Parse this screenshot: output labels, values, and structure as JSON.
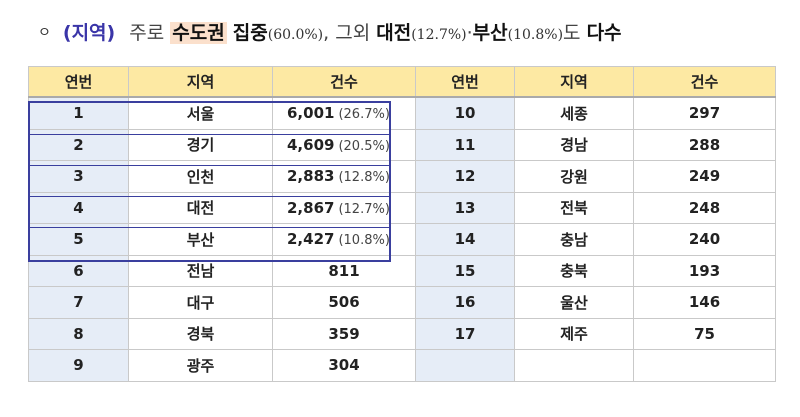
{
  "heading": {
    "bullet": "ㅇ",
    "tag": "(지역)",
    "t1": "주로",
    "t2": "수도권",
    "t3": "집중",
    "t4": "(60.0%)",
    "t5": ", 그외",
    "t6": "대전",
    "t7": "(12.7%)",
    "t8": "·",
    "t9": "부산",
    "t10": "(10.8%)",
    "t11": "도",
    "t12": "다수"
  },
  "table": {
    "headers": [
      "연번",
      "지역",
      "건수",
      "연번",
      "지역",
      "건수"
    ],
    "rows": [
      {
        "no": "1",
        "region": "서울",
        "count": "6,001",
        "pct": "(26.7%)",
        "no2": "10",
        "region2": "세종",
        "count2": "297"
      },
      {
        "no": "2",
        "region": "경기",
        "count": "4,609",
        "pct": "(20.5%)",
        "no2": "11",
        "region2": "경남",
        "count2": "288"
      },
      {
        "no": "3",
        "region": "인천",
        "count": "2,883",
        "pct": "(12.8%)",
        "no2": "12",
        "region2": "강원",
        "count2": "249"
      },
      {
        "no": "4",
        "region": "대전",
        "count": "2,867",
        "pct": "(12.7%)",
        "no2": "13",
        "region2": "전북",
        "count2": "248"
      },
      {
        "no": "5",
        "region": "부산",
        "count": "2,427",
        "pct": "(10.8%)",
        "no2": "14",
        "region2": "충남",
        "count2": "240"
      },
      {
        "no": "6",
        "region": "전남",
        "count": "811",
        "pct": "",
        "no2": "15",
        "region2": "충북",
        "count2": "193"
      },
      {
        "no": "7",
        "region": "대구",
        "count": "506",
        "pct": "",
        "no2": "16",
        "region2": "울산",
        "count2": "146"
      },
      {
        "no": "8",
        "region": "경북",
        "count": "359",
        "pct": "",
        "no2": "17",
        "region2": "제주",
        "count2": "75"
      },
      {
        "no": "9",
        "region": "광주",
        "count": "304",
        "pct": "",
        "no2": "",
        "region2": "",
        "count2": ""
      }
    ]
  },
  "colors": {
    "header_bg": "#fde9a3",
    "number_cell_bg": "#e6edf7",
    "highlight_border": "#3a3f9e",
    "tag_color": "#3a35a8",
    "heading_highlight": "#fbe0cc"
  }
}
